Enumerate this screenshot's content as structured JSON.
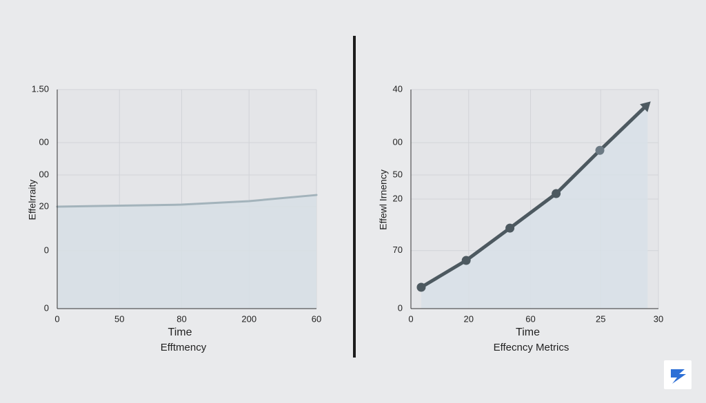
{
  "chart_data": [
    {
      "type": "line",
      "y_label": "Effelrraity",
      "x_label": "Time",
      "caption": "Efftmency",
      "xlim": [
        0,
        250
      ],
      "ylim": [
        0,
        150
      ],
      "xticks": [
        0,
        {
          "value": 60,
          "label": "50"
        },
        {
          "value": 120,
          "label": "80"
        },
        {
          "value": 185,
          "label": "200"
        },
        {
          "value": 250,
          "label": "60"
        }
      ],
      "yticks": [
        0,
        {
          "value": 39.6,
          "label": "0"
        },
        {
          "value": 69.8,
          "label": "20"
        },
        {
          "value": 91.5,
          "label": "00"
        },
        {
          "value": 113.7,
          "label": "00"
        },
        {
          "value": 150,
          "label": "1.50"
        }
      ],
      "grid": true,
      "series": [
        {
          "color": "#a3b3bb",
          "x": [
            0,
            120,
            185,
            250
          ],
          "values": [
            69.8,
            71.2,
            73.6,
            77.8
          ]
        }
      ]
    },
    {
      "type": "line",
      "y_label": "Effewl Irnency",
      "x_label": "Time",
      "caption": "Effecncy Metrics",
      "xlim": [
        0,
        30
      ],
      "ylim": [
        0,
        40
      ],
      "xticks": [
        0,
        {
          "value": 7,
          "label": "20"
        },
        {
          "value": 14.5,
          "label": "60"
        },
        {
          "value": 23,
          "label": "25"
        },
        30
      ],
      "yticks": [
        0,
        {
          "value": 10.6,
          "label": "70"
        },
        20,
        {
          "value": 24.4,
          "label": "50"
        },
        {
          "value": 30.3,
          "label": "00"
        },
        40
      ],
      "grid": true,
      "series": [
        {
          "color": "#4d5960",
          "x": [
            1.25,
            6.7,
            12.0,
            17.6,
            22.9,
            28.7
          ],
          "values": [
            3.9,
            8.8,
            14.7,
            21.0,
            28.9,
            37.3
          ]
        }
      ]
    }
  ]
}
